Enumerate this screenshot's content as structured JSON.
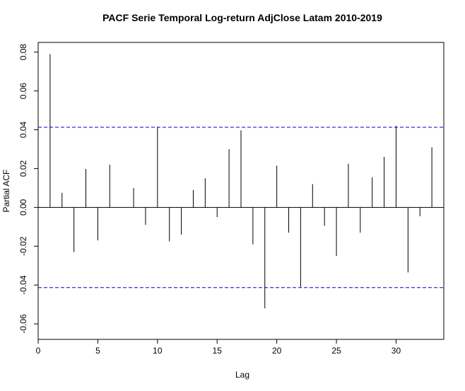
{
  "chart_data": {
    "type": "bar",
    "title": "PACF Serie Temporal Log-return AdjClose Latam 2010-2019",
    "xlabel": "Lag",
    "ylabel": "Partial ACF",
    "xlim": [
      0,
      34
    ],
    "ylim": [
      -0.068,
      0.085
    ],
    "x_ticks": [
      0,
      5,
      10,
      15,
      20,
      25,
      30
    ],
    "x_tick_labels": [
      "0",
      "5",
      "10",
      "15",
      "20",
      "25",
      "30"
    ],
    "y_ticks": [
      -0.06,
      -0.04,
      -0.02,
      0.0,
      0.02,
      0.04,
      0.06,
      0.08
    ],
    "y_tick_labels": [
      "-0.06",
      "-0.04",
      "-0.02",
      "0.00",
      "0.02",
      "0.04",
      "0.06",
      "0.08"
    ],
    "confidence_bound": 0.0413,
    "confidence_line_color": "#0000cd",
    "zero_line": true,
    "x": [
      1,
      2,
      3,
      4,
      5,
      6,
      7,
      8,
      9,
      10,
      11,
      12,
      13,
      14,
      15,
      16,
      17,
      18,
      19,
      20,
      21,
      22,
      23,
      24,
      25,
      26,
      27,
      28,
      29,
      30,
      31,
      32,
      33
    ],
    "values": [
      0.079,
      0.0075,
      -0.023,
      0.0198,
      -0.017,
      0.022,
      0.0,
      0.01,
      -0.009,
      0.0415,
      -0.0175,
      -0.014,
      0.009,
      0.015,
      -0.005,
      0.03,
      0.0397,
      -0.019,
      -0.052,
      0.0215,
      -0.013,
      -0.041,
      0.012,
      -0.0095,
      -0.025,
      0.0225,
      -0.013,
      0.0155,
      0.026,
      0.042,
      -0.0335,
      -0.0045,
      0.031
    ]
  }
}
